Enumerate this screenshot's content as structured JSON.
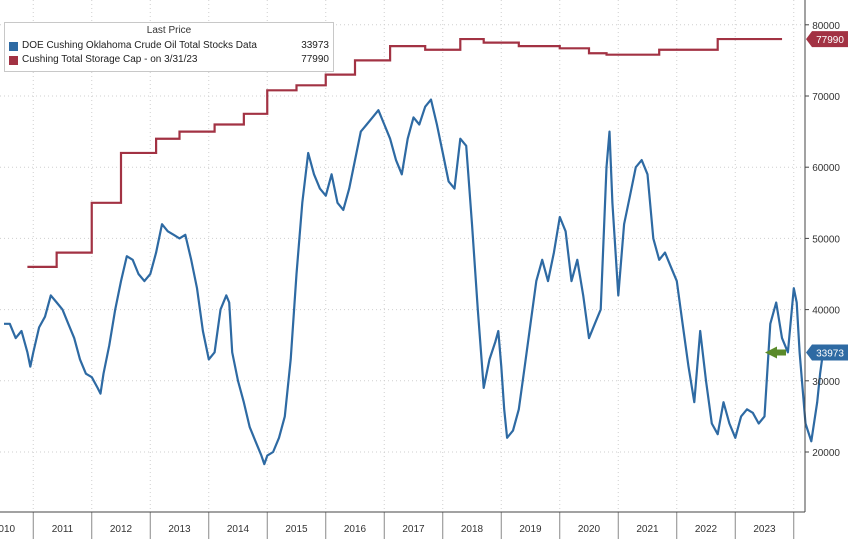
{
  "chart_data": {
    "type": "line",
    "legend_title": "Last Price",
    "legend_placement": "top-left",
    "grid": true,
    "x_range": [
      2010.0,
      2024.0
    ],
    "y_range": [
      11500,
      82000
    ],
    "y_ticks": [
      20000,
      30000,
      40000,
      50000,
      60000,
      70000,
      80000
    ],
    "y_tick_labels": [
      "20000",
      "30000",
      "40000",
      "50000",
      "60000",
      "70000",
      "80000"
    ],
    "x_tick_labels": [
      {
        "label": "2010",
        "x": 2010.0
      },
      {
        "label": "2011",
        "x": 2011.0
      },
      {
        "label": "2012",
        "x": 2012.0
      },
      {
        "label": "2013",
        "x": 2013.0
      },
      {
        "label": "2014",
        "x": 2014.0
      },
      {
        "label": "2015",
        "x": 2015.0
      },
      {
        "label": "2016",
        "x": 2016.0
      },
      {
        "label": "2017",
        "x": 2017.0
      },
      {
        "label": "2018",
        "x": 2018.0
      },
      {
        "label": "2019",
        "x": 2019.0
      },
      {
        "label": "2020",
        "x": 2020.0
      },
      {
        "label": "2021",
        "x": 2021.0
      },
      {
        "label": "2022",
        "x": 2022.0
      },
      {
        "label": "2023",
        "x": 2023.0
      }
    ],
    "series": [
      {
        "name": "DOE Cushing Oklahoma Crude Oil Total Stocks Data",
        "last_value": "33973",
        "color": "#2e6aa3",
        "marker_color": "#5a8a2a",
        "points": [
          [
            2010.0,
            38000
          ],
          [
            2010.1,
            38000
          ],
          [
            2010.2,
            36000
          ],
          [
            2010.3,
            37000
          ],
          [
            2010.4,
            34000
          ],
          [
            2010.45,
            32000
          ],
          [
            2010.5,
            34000
          ],
          [
            2010.6,
            37500
          ],
          [
            2010.7,
            39000
          ],
          [
            2010.8,
            42000
          ],
          [
            2010.9,
            41000
          ],
          [
            2011.0,
            40000
          ],
          [
            2011.1,
            38000
          ],
          [
            2011.2,
            36000
          ],
          [
            2011.3,
            33000
          ],
          [
            2011.4,
            31000
          ],
          [
            2011.5,
            30500
          ],
          [
            2011.6,
            29000
          ],
          [
            2011.65,
            28200
          ],
          [
            2011.7,
            31000
          ],
          [
            2011.8,
            35000
          ],
          [
            2011.9,
            40000
          ],
          [
            2012.0,
            44000
          ],
          [
            2012.1,
            47500
          ],
          [
            2012.2,
            47000
          ],
          [
            2012.3,
            45000
          ],
          [
            2012.4,
            44000
          ],
          [
            2012.5,
            45000
          ],
          [
            2012.6,
            48000
          ],
          [
            2012.7,
            52000
          ],
          [
            2012.8,
            51000
          ],
          [
            2012.9,
            50500
          ],
          [
            2013.0,
            50000
          ],
          [
            2013.1,
            50500
          ],
          [
            2013.2,
            47000
          ],
          [
            2013.3,
            43000
          ],
          [
            2013.4,
            37000
          ],
          [
            2013.5,
            33000
          ],
          [
            2013.6,
            34000
          ],
          [
            2013.7,
            40000
          ],
          [
            2013.8,
            42000
          ],
          [
            2013.85,
            41000
          ],
          [
            2013.9,
            34000
          ],
          [
            2014.0,
            30000
          ],
          [
            2014.1,
            27000
          ],
          [
            2014.2,
            23500
          ],
          [
            2014.3,
            21500
          ],
          [
            2014.4,
            19500
          ],
          [
            2014.45,
            18300
          ],
          [
            2014.5,
            19500
          ],
          [
            2014.6,
            20000
          ],
          [
            2014.7,
            22000
          ],
          [
            2014.8,
            25000
          ],
          [
            2014.9,
            33000
          ],
          [
            2015.0,
            45000
          ],
          [
            2015.1,
            55000
          ],
          [
            2015.2,
            62000
          ],
          [
            2015.3,
            59000
          ],
          [
            2015.4,
            57000
          ],
          [
            2015.5,
            56000
          ],
          [
            2015.6,
            59000
          ],
          [
            2015.7,
            55000
          ],
          [
            2015.8,
            54000
          ],
          [
            2015.9,
            57000
          ],
          [
            2016.0,
            61000
          ],
          [
            2016.1,
            65000
          ],
          [
            2016.2,
            66000
          ],
          [
            2016.3,
            67000
          ],
          [
            2016.4,
            68000
          ],
          [
            2016.5,
            66000
          ],
          [
            2016.6,
            64000
          ],
          [
            2016.7,
            61000
          ],
          [
            2016.8,
            59000
          ],
          [
            2016.9,
            64000
          ],
          [
            2017.0,
            67000
          ],
          [
            2017.1,
            66000
          ],
          [
            2017.2,
            68500
          ],
          [
            2017.3,
            69500
          ],
          [
            2017.4,
            66000
          ],
          [
            2017.5,
            62000
          ],
          [
            2017.6,
            58000
          ],
          [
            2017.7,
            57000
          ],
          [
            2017.8,
            64000
          ],
          [
            2017.9,
            63000
          ],
          [
            2018.0,
            52000
          ],
          [
            2018.1,
            40000
          ],
          [
            2018.2,
            29000
          ],
          [
            2018.3,
            33000
          ],
          [
            2018.4,
            35500
          ],
          [
            2018.45,
            37000
          ],
          [
            2018.5,
            32000
          ],
          [
            2018.55,
            26000
          ],
          [
            2018.6,
            22000
          ],
          [
            2018.7,
            23000
          ],
          [
            2018.8,
            26000
          ],
          [
            2018.9,
            32000
          ],
          [
            2019.0,
            38000
          ],
          [
            2019.1,
            44000
          ],
          [
            2019.2,
            47000
          ],
          [
            2019.3,
            44000
          ],
          [
            2019.4,
            48000
          ],
          [
            2019.5,
            53000
          ],
          [
            2019.6,
            51000
          ],
          [
            2019.7,
            44000
          ],
          [
            2019.8,
            47000
          ],
          [
            2019.9,
            42000
          ],
          [
            2020.0,
            36000
          ],
          [
            2020.1,
            38000
          ],
          [
            2020.2,
            40000
          ],
          [
            2020.3,
            60000
          ],
          [
            2020.35,
            65000
          ],
          [
            2020.4,
            55000
          ],
          [
            2020.5,
            42000
          ],
          [
            2020.6,
            52000
          ],
          [
            2020.7,
            56000
          ],
          [
            2020.8,
            60000
          ],
          [
            2020.9,
            61000
          ],
          [
            2021.0,
            59000
          ],
          [
            2021.1,
            50000
          ],
          [
            2021.2,
            47000
          ],
          [
            2021.3,
            48000
          ],
          [
            2021.4,
            46000
          ],
          [
            2021.5,
            44000
          ],
          [
            2021.6,
            38000
          ],
          [
            2021.7,
            32000
          ],
          [
            2021.8,
            27000
          ],
          [
            2021.9,
            37000
          ],
          [
            2022.0,
            30000
          ],
          [
            2022.1,
            24000
          ],
          [
            2022.2,
            22500
          ],
          [
            2022.3,
            27000
          ],
          [
            2022.4,
            24000
          ],
          [
            2022.5,
            22000
          ],
          [
            2022.6,
            25000
          ],
          [
            2022.7,
            26000
          ],
          [
            2022.8,
            25500
          ],
          [
            2022.9,
            24000
          ],
          [
            2023.0,
            25000
          ],
          [
            2023.1,
            38000
          ],
          [
            2023.2,
            41000
          ],
          [
            2023.3,
            36000
          ],
          [
            2023.4,
            34000
          ],
          [
            2023.5,
            43000
          ],
          [
            2023.55,
            41000
          ],
          [
            2023.6,
            34000
          ],
          [
            2023.7,
            24000
          ],
          [
            2023.8,
            21500
          ],
          [
            2023.9,
            27000
          ],
          [
            2023.95,
            31000
          ],
          [
            2024.0,
            33973
          ]
        ]
      },
      {
        "name": "Cushing Total Storage Cap  -  on 3/31/23",
        "last_value": "77990",
        "color": "#a23243",
        "steps": [
          [
            2010.4,
            46000
          ],
          [
            2010.9,
            48000
          ],
          [
            2011.5,
            55000
          ],
          [
            2012.0,
            62000
          ],
          [
            2012.6,
            64000
          ],
          [
            2013.0,
            65000
          ],
          [
            2013.6,
            66000
          ],
          [
            2014.1,
            67500
          ],
          [
            2014.5,
            70800
          ],
          [
            2015.0,
            71500
          ],
          [
            2015.5,
            73000
          ],
          [
            2016.0,
            75000
          ],
          [
            2016.6,
            77000
          ],
          [
            2017.2,
            76500
          ],
          [
            2017.8,
            78000
          ],
          [
            2018.2,
            77500
          ],
          [
            2018.8,
            77000
          ],
          [
            2019.5,
            76700
          ],
          [
            2020.0,
            76000
          ],
          [
            2020.3,
            75800
          ],
          [
            2021.2,
            76500
          ],
          [
            2022.2,
            78000
          ]
        ],
        "step_end": 2023.3
      }
    ]
  }
}
